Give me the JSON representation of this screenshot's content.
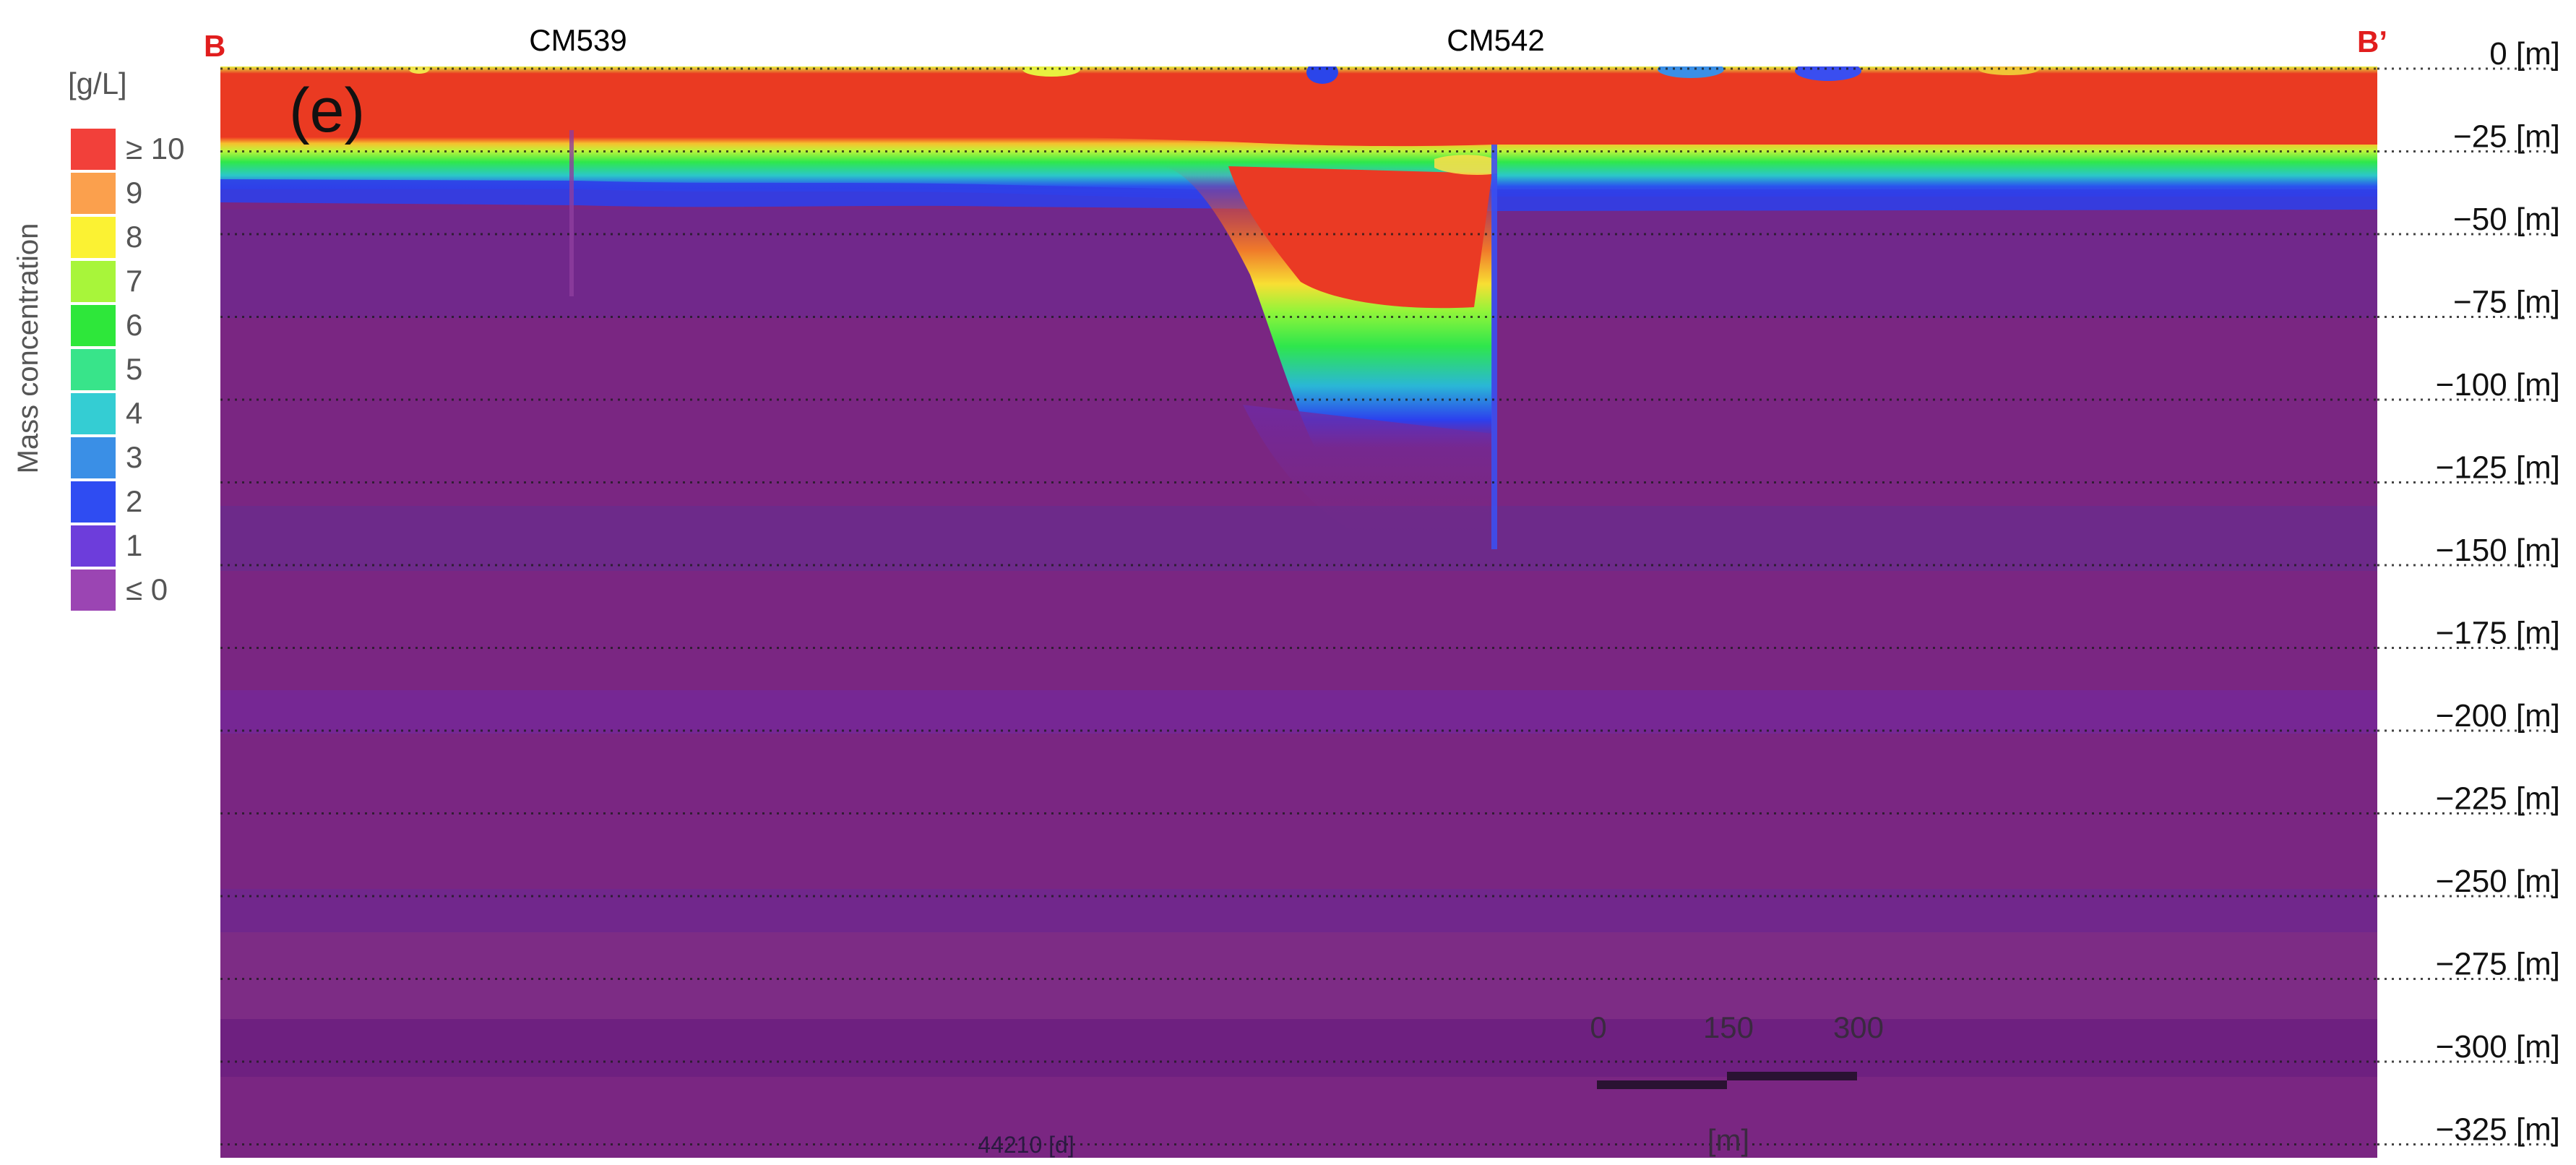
{
  "section": {
    "start_label": "B",
    "end_label": "B’",
    "panel_label": "(e)",
    "wells": [
      "CM539",
      "CM542"
    ],
    "time_stamp": "44210 [d]"
  },
  "legend": {
    "unit": "[g/L]",
    "title": "Mass concentration",
    "entries": [
      {
        "label": "≥ 10",
        "color": "#f2403a"
      },
      {
        "label": "9",
        "color": "#fba04d"
      },
      {
        "label": "8",
        "color": "#fbf233"
      },
      {
        "label": "7",
        "color": "#a8f53a"
      },
      {
        "label": "6",
        "color": "#2ee73a"
      },
      {
        "label": "5",
        "color": "#38e48a"
      },
      {
        "label": "4",
        "color": "#34cdd3"
      },
      {
        "label": "3",
        "color": "#3a8fe6"
      },
      {
        "label": "2",
        "color": "#2f4cf2"
      },
      {
        "label": "1",
        "color": "#6d3ddb"
      },
      {
        "label": "≤ 0",
        "color": "#9b45b3"
      }
    ]
  },
  "depth_axis": {
    "ticks": [
      "0 [m]",
      "−25 [m]",
      "−50 [m]",
      "−75 [m]",
      "−100 [m]",
      "−125 [m]",
      "−150 [m]",
      "−175 [m]",
      "−200 [m]",
      "−225 [m]",
      "−250 [m]",
      "−275 [m]",
      "−300 [m]",
      "−325 [m]"
    ]
  },
  "scale_bar": {
    "labels": [
      "0",
      "150",
      "300"
    ],
    "unit": "[m]"
  }
}
